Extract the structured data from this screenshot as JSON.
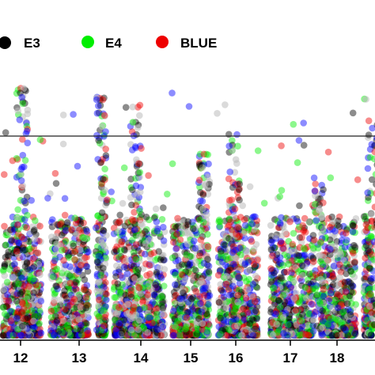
{
  "chart_data": {
    "type": "scatter",
    "title": "",
    "xlabel": "",
    "ylabel": "",
    "chromosome_labels": [
      "12",
      "13",
      "14",
      "15",
      "16",
      "17",
      "18"
    ],
    "legend": [
      {
        "name": "E3",
        "color": "#000000"
      },
      {
        "name": "E4",
        "color": "#00ee00"
      },
      {
        "name": "BLUE",
        "color": "#ee0000"
      }
    ],
    "extra_point_colors": [
      "#0000ff",
      "#bbbbbb"
    ],
    "significance_threshold_line": true,
    "grid": false,
    "legend_position": "top-left",
    "peaks": [
      {
        "chromosome": "12",
        "max_height_fraction": 0.86
      },
      {
        "chromosome": "13",
        "max_height_fraction": 0.83
      },
      {
        "chromosome": "14",
        "max_height_fraction": 0.8
      },
      {
        "chromosome": "15",
        "max_height_fraction": 0.63
      },
      {
        "chromosome": "16",
        "max_height_fraction": 0.7
      },
      {
        "chromosome": "17",
        "max_height_fraction": 0.55
      },
      {
        "chromosome": "18",
        "max_height_fraction": 0.75
      }
    ]
  }
}
